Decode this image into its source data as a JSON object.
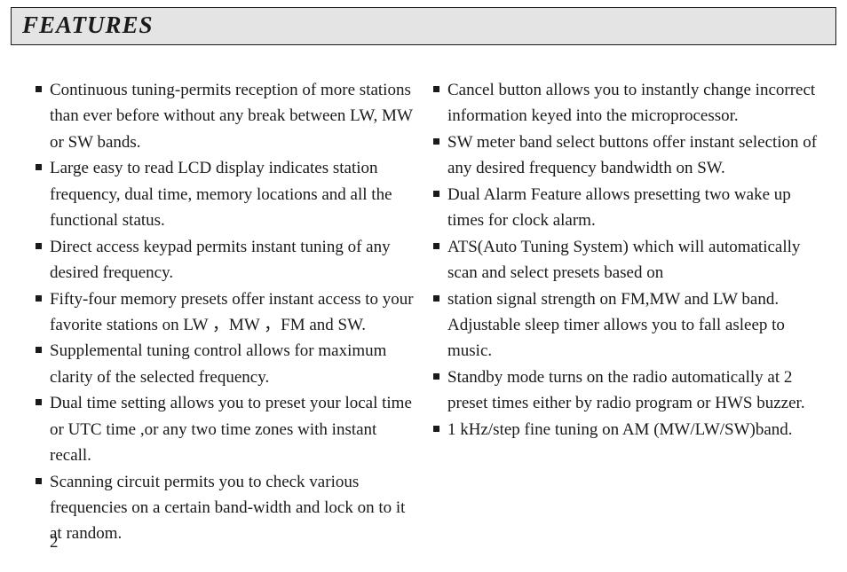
{
  "header": {
    "title": "FEATURES"
  },
  "left_items": [
    "Continuous tuning-permits reception of more stations than ever before without any break between LW, MW or SW bands.",
    "Large easy to read LCD display indicates station frequency, dual time, memory locations and all the functional status.",
    "Direct access keypad permits instant tuning of any desired frequency.",
    "Fifty-four memory presets offer instant access to your favorite stations on LW ，MW  ，FM and SW.",
    "Supplemental tuning control allows for maximum clarity of the selected frequency.",
    "Dual time setting allows you to preset your local time or UTC time ,or any two time zones with instant recall.",
    "Scanning circuit permits you to check various frequencies on a certain band-width and lock on to it at random."
  ],
  "right_items": [
    "Cancel button allows you to instantly change incorrect information keyed into the microprocessor.",
    "SW meter band select buttons offer instant selection of any desired frequency bandwidth on SW.",
    "Dual Alarm Feature allows presetting two wake up times for clock alarm.",
    "ATS(Auto Tuning System) which will automatically scan and select presets based on",
    "station signal strength on FM,MW and LW band. Adjustable sleep timer allows you to fall asleep  to music.",
    "Standby mode turns on the radio automatically at 2 preset times either by radio program or HWS buzzer.",
    "1 kHz/step fine tuning on AM (MW/LW/SW)band."
  ],
  "page_number": "2",
  "style": {
    "bg": "#ffffff",
    "header_bg": "#e4e4e4",
    "text_color": "#1a1a1a",
    "bullet_color": "#1a1a1a",
    "body_fontsize": 19,
    "title_fontsize": 27
  }
}
